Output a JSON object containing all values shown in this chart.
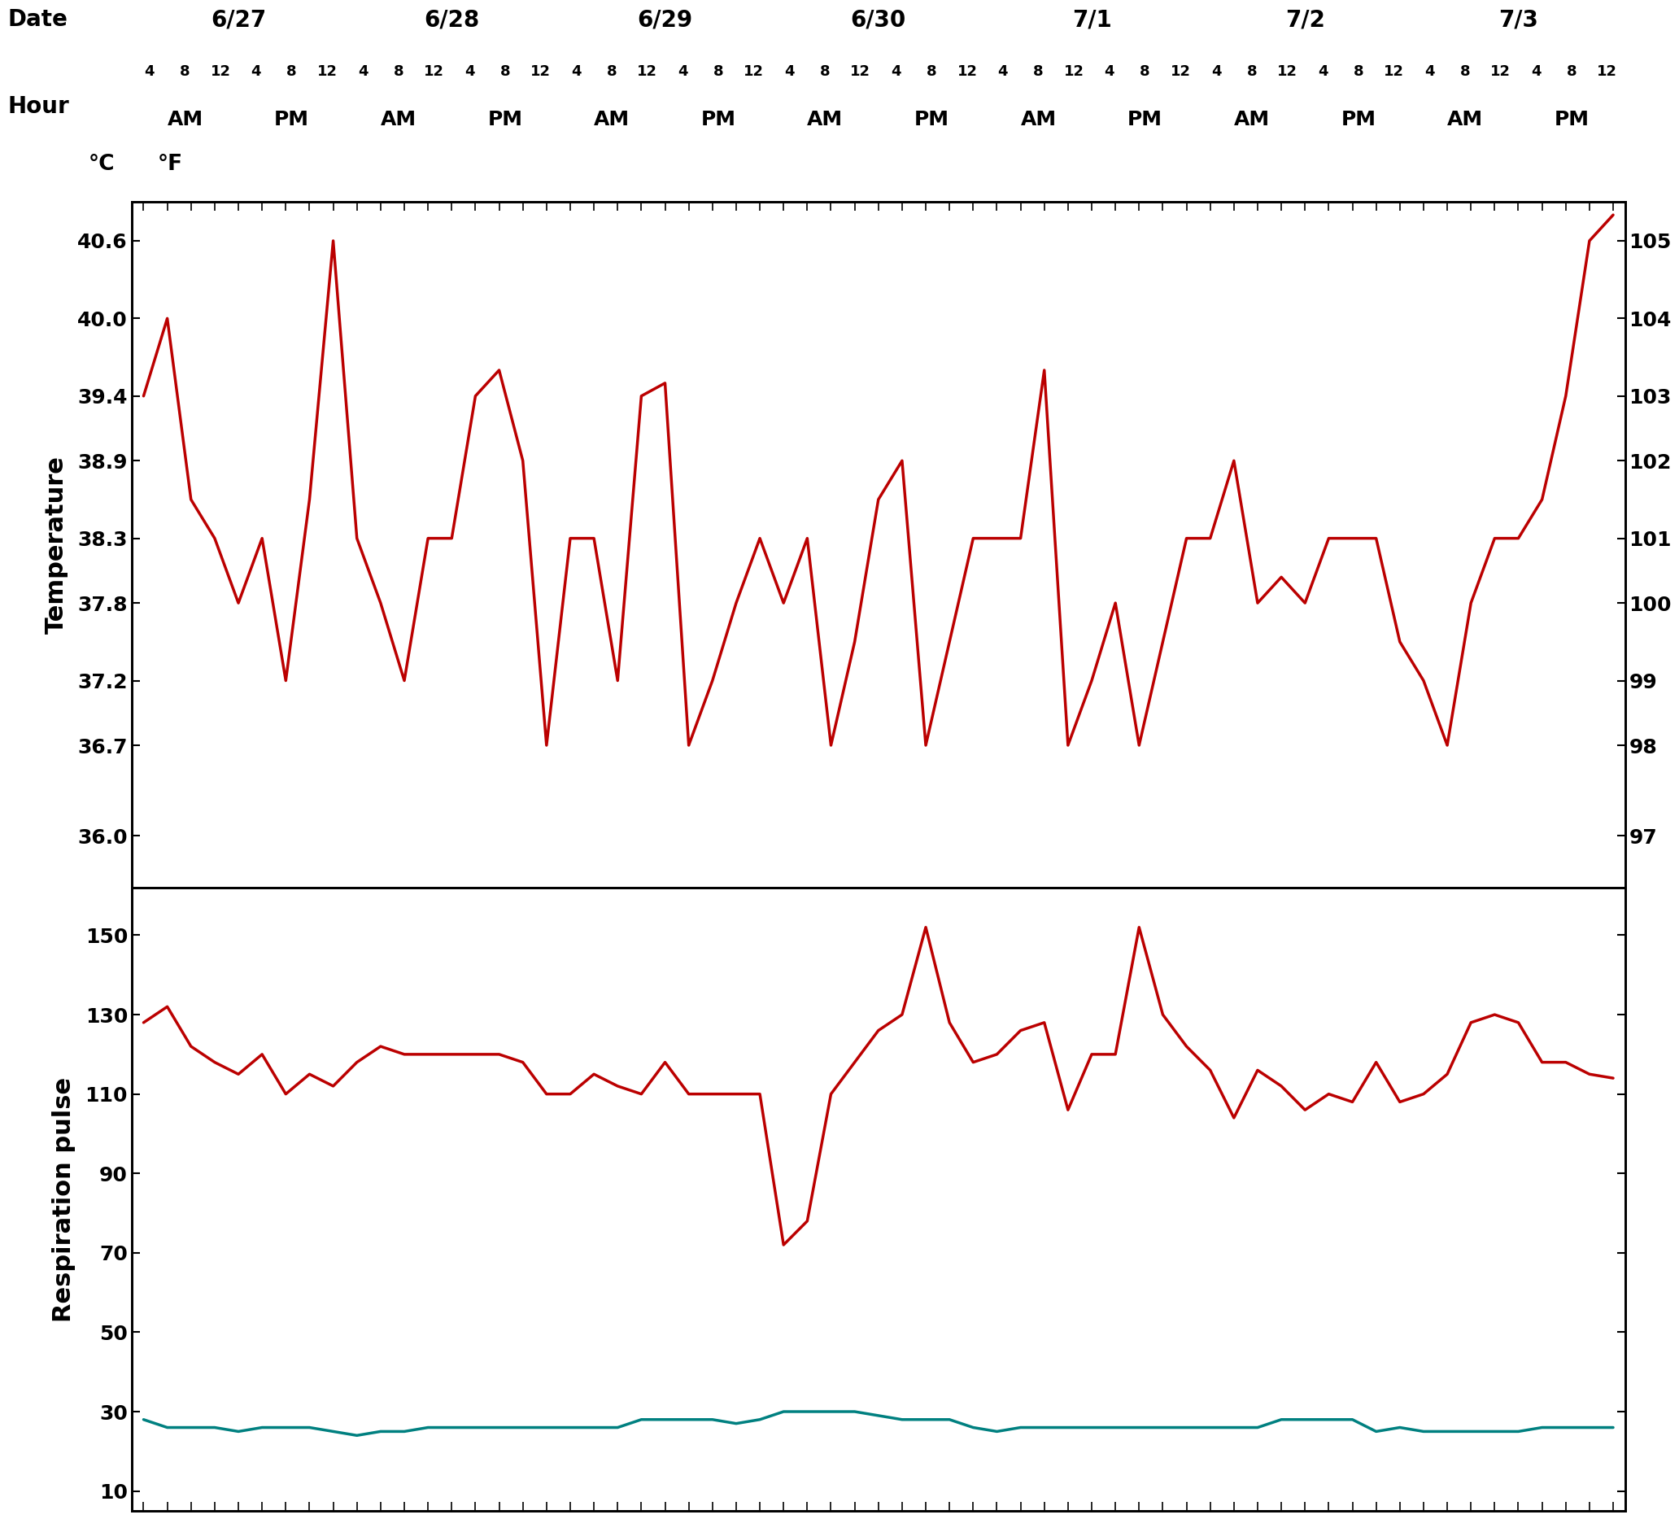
{
  "dates": [
    "6/27",
    "6/28",
    "6/29",
    "6/30",
    "7/1",
    "7/2",
    "7/3"
  ],
  "temp_c_ticks": [
    36.0,
    36.7,
    37.2,
    37.8,
    38.3,
    38.9,
    39.4,
    40.0,
    40.6
  ],
  "temp_f_ticks": [
    97,
    98,
    99,
    100,
    101,
    102,
    103,
    104,
    105
  ],
  "temp_ylim_c": [
    35.6,
    40.9
  ],
  "pulse_yticks": [
    10,
    30,
    50,
    70,
    90,
    110,
    130,
    150
  ],
  "pulse_ylim": [
    5,
    162
  ],
  "line_color_red": "#BB0000",
  "line_color_teal": "#008080",
  "temp_data": [
    39.4,
    40.0,
    38.6,
    38.3,
    37.8,
    38.3,
    37.2,
    38.6,
    40.6,
    38.3,
    37.8,
    37.2,
    38.3,
    38.3,
    39.4,
    39.6,
    38.9,
    36.7,
    38.3,
    38.3,
    37.2,
    39.4,
    39.5,
    36.7,
    37.2,
    37.8,
    38.3,
    37.8,
    38.3,
    36.7,
    37.5,
    38.6,
    38.9,
    36.7,
    37.5,
    38.3,
    38.3,
    38.3,
    39.6,
    36.7,
    37.2,
    37.8,
    36.7,
    37.5,
    38.3,
    38.3,
    38.9,
    37.8,
    38.0,
    37.8,
    38.3,
    38.3,
    38.3,
    37.5,
    37.2,
    36.7,
    37.8,
    38.3,
    38.3,
    38.6,
    39.4,
    40.6,
    40.8
  ],
  "pulse_data": [
    128,
    132,
    122,
    118,
    115,
    120,
    110,
    115,
    112,
    118,
    122,
    120,
    120,
    120,
    120,
    120,
    118,
    110,
    110,
    115,
    112,
    110,
    118,
    110,
    110,
    110,
    110,
    72,
    78,
    110,
    118,
    126,
    130,
    152,
    128,
    118,
    120,
    126,
    128,
    106,
    120,
    120,
    152,
    130,
    122,
    116,
    104,
    116,
    112,
    106,
    110,
    108,
    118,
    108,
    110,
    115,
    128,
    130,
    128,
    118,
    118,
    115,
    114
  ],
  "resp_data": [
    28,
    26,
    26,
    26,
    25,
    26,
    26,
    26,
    25,
    24,
    25,
    25,
    26,
    26,
    26,
    26,
    26,
    26,
    26,
    26,
    26,
    28,
    28,
    28,
    28,
    27,
    28,
    30,
    30,
    30,
    30,
    29,
    28,
    28,
    28,
    26,
    25,
    26,
    26,
    26,
    26,
    26,
    26,
    26,
    26,
    26,
    26,
    26,
    28,
    28,
    28,
    28,
    25,
    26,
    25,
    25,
    25,
    25,
    25,
    26,
    26,
    26,
    26
  ],
  "n_points": 63,
  "background_color": "#ffffff"
}
